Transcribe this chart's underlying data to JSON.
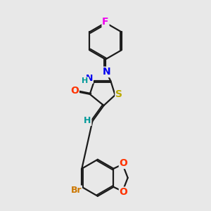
{
  "bg_color": "#e8e8e8",
  "bond_color": "#1a1a1a",
  "atom_colors": {
    "F": "#ee00ee",
    "N": "#0000ee",
    "O": "#ff3300",
    "S": "#bbaa00",
    "Br": "#cc7700",
    "H": "#009999",
    "C": "#1a1a1a"
  },
  "bond_width": 1.6,
  "figsize": [
    3.0,
    3.0
  ],
  "dpi": 100
}
